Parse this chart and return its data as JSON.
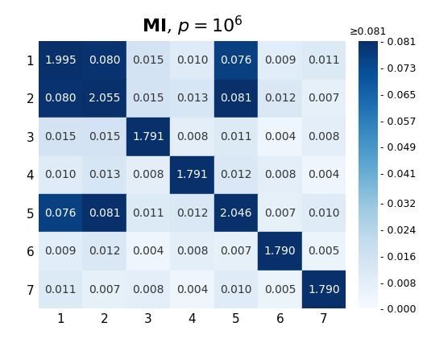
{
  "title": "MI, $p = 10^6$",
  "matrix": [
    [
      1.995,
      0.08,
      0.015,
      0.01,
      0.076,
      0.009,
      0.011
    ],
    [
      0.08,
      2.055,
      0.015,
      0.013,
      0.081,
      0.012,
      0.007
    ],
    [
      0.015,
      0.015,
      1.791,
      0.008,
      0.011,
      0.004,
      0.008
    ],
    [
      0.01,
      0.013,
      0.008,
      1.791,
      0.012,
      0.008,
      0.004
    ],
    [
      0.076,
      0.081,
      0.011,
      0.012,
      2.046,
      0.007,
      0.01
    ],
    [
      0.009,
      0.012,
      0.004,
      0.008,
      0.007,
      1.79,
      0.005
    ],
    [
      0.011,
      0.007,
      0.008,
      0.004,
      0.01,
      0.005,
      1.79
    ]
  ],
  "row_labels": [
    "1",
    "2",
    "3",
    "4",
    "5",
    "6",
    "7"
  ],
  "col_labels": [
    "1",
    "2",
    "3",
    "4",
    "5",
    "6",
    "7"
  ],
  "cmap": "Blues",
  "vmin": 0.0,
  "vmax": 0.081,
  "colorbar_ticks": [
    0.0,
    0.008,
    0.016,
    0.024,
    0.032,
    0.041,
    0.049,
    0.057,
    0.065,
    0.073,
    0.081
  ],
  "colorbar_top_label": "≥0.081",
  "text_white_threshold": 0.75,
  "title_fontsize": 16,
  "tick_fontsize": 11,
  "cell_fontsize": 10,
  "cbar_fontsize": 9
}
